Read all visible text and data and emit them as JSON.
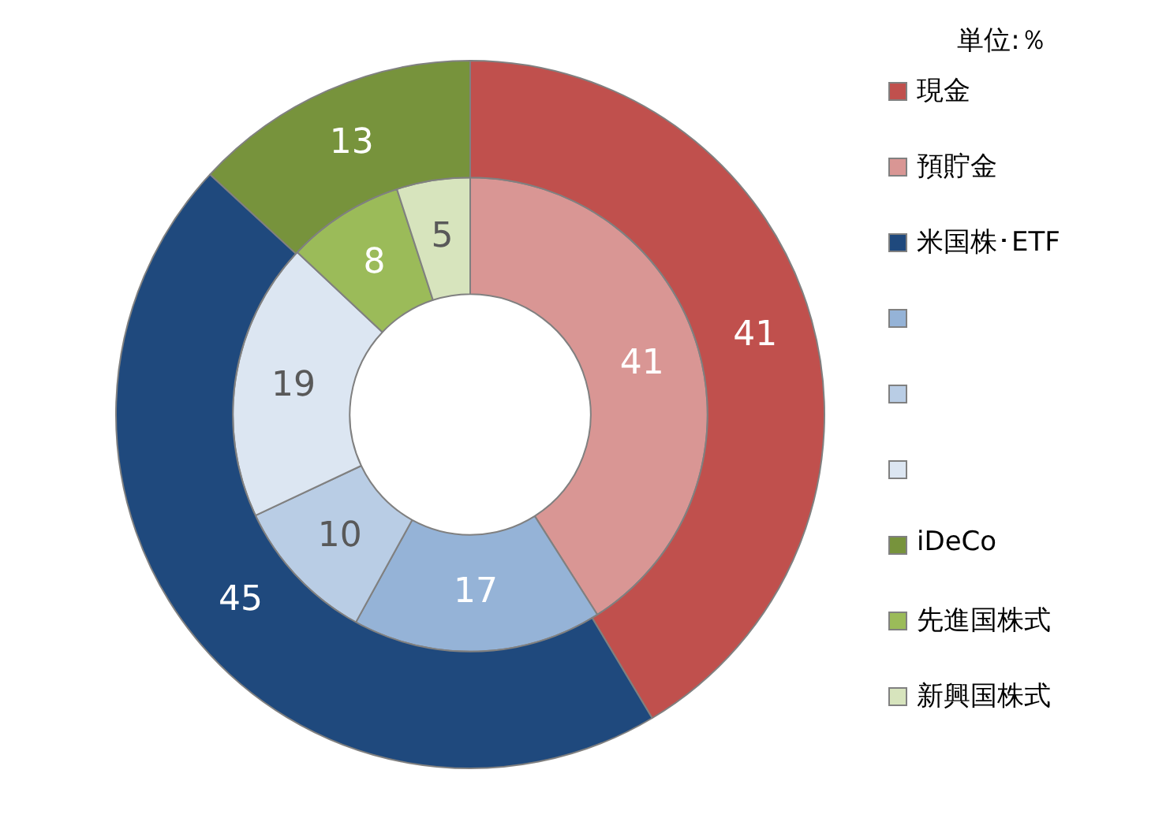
{
  "chart_data": {
    "type": "donut",
    "legend_title": "単位:％",
    "legend": "right",
    "data_labels": true,
    "categories": [
      "現金",
      "預貯金",
      "米国株･ETF",
      null,
      null,
      null,
      "iDeCo",
      "先進国株式",
      "新興国株式"
    ],
    "colors": [
      "#c0504d",
      "#d99694",
      "#1f497d",
      "#95b3d7",
      "#b9cde5",
      "#dce6f2",
      "#77933c",
      "#9bbb59",
      "#d7e4bd"
    ],
    "series": [
      {
        "values": [
          41,
          null,
          45,
          null,
          null,
          null,
          13,
          null,
          null
        ]
      },
      {
        "values": [
          null,
          41,
          null,
          17,
          10,
          19,
          null,
          8,
          5
        ]
      }
    ]
  }
}
